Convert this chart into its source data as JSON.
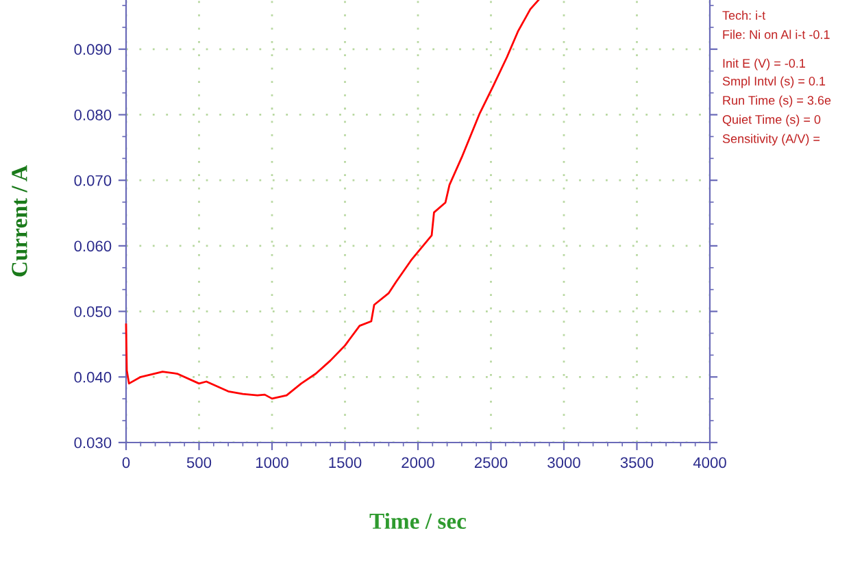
{
  "chart_data": {
    "type": "line",
    "xlabel": "Time / sec",
    "ylabel": "Current / A",
    "x": [
      0,
      5,
      20,
      100,
      250,
      350,
      500,
      550,
      600,
      700,
      800,
      900,
      950,
      1000,
      1100,
      1200,
      1300,
      1400,
      1500,
      1600,
      1680,
      1700,
      1800,
      1850,
      1953,
      2094,
      2110,
      2188,
      2216,
      2300,
      2423,
      2516,
      2610,
      2685,
      2770,
      2826
    ],
    "series": [
      {
        "color": "#ff0000",
        "values": [
          0.048,
          0.041,
          0.039,
          0.04,
          0.0408,
          0.0405,
          0.039,
          0.0393,
          0.0388,
          0.0378,
          0.0374,
          0.0372,
          0.0373,
          0.0367,
          0.0372,
          0.039,
          0.0405,
          0.0425,
          0.0448,
          0.0478,
          0.0485,
          0.051,
          0.0528,
          0.0545,
          0.0578,
          0.0616,
          0.0651,
          0.0666,
          0.0693,
          0.0735,
          0.0802,
          0.0844,
          0.0888,
          0.0927,
          0.0961,
          0.0975
        ]
      }
    ],
    "xlim": [
      0,
      4000
    ],
    "xticks": [
      0,
      500,
      1000,
      1500,
      2000,
      2500,
      3000,
      3500,
      4000
    ],
    "ylim": [
      0.03,
      0.0975
    ],
    "yticks": [
      {
        "value": 0.03,
        "label": "0.030"
      },
      {
        "value": 0.04,
        "label": "0.040"
      },
      {
        "value": 0.05,
        "label": "0.050"
      },
      {
        "value": 0.06,
        "label": "0.060"
      },
      {
        "value": 0.07,
        "label": "0.070"
      },
      {
        "value": 0.08,
        "label": "0.080"
      },
      {
        "value": 0.09,
        "label": "0.090"
      }
    ],
    "grid": true,
    "line_style": "solid",
    "marker": "none",
    "annotations": [
      "Tech: i-t",
      "File: Ni on Al i-t -0.1",
      "Init E (V) = -0.1",
      "Smpl Intvl (s) = 0.1",
      "Run Time (s) = 3.6e",
      "Quiet Time (s) = 0",
      "Sensitivity (A/V) = "
    ]
  }
}
